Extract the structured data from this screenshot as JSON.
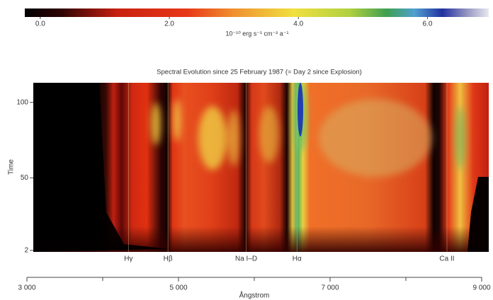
{
  "chart_data": {
    "type": "heatmap",
    "title": "Spectral Evolution since 25 February 1987 (= Day 2 since Explosion)",
    "x_label": "Ångstrom",
    "y_label": "Time",
    "xlim": [
      3000,
      9000
    ],
    "xticks": [
      {
        "value": 3000,
        "label": "3 000"
      },
      {
        "value": 5000,
        "label": "5 000"
      },
      {
        "value": 7000,
        "label": "7 000"
      },
      {
        "value": 9000,
        "label": "9 000"
      }
    ],
    "x_minor_ticks": [
      4000,
      6000,
      8000
    ],
    "ylim": [
      1,
      113
    ],
    "yticks": [
      2,
      50,
      100
    ],
    "lines": [
      {
        "label": "Hγ",
        "x": 4340
      },
      {
        "label": "Hβ",
        "x": 4861
      },
      {
        "label": "Na I–D",
        "x": 5893
      },
      {
        "label": "Hα",
        "x": 6563
      },
      {
        "label": "Ca II",
        "x": 8542
      }
    ],
    "colorbar": {
      "label": "10⁻¹⁰ erg s⁻¹ cm⁻² a⁻¹",
      "clim": [
        -0.24,
        6.95
      ],
      "ticks": [
        {
          "value": 0,
          "label": "0.0"
        },
        {
          "value": 2,
          "label": "2.0"
        },
        {
          "value": 4,
          "label": "4.0"
        },
        {
          "value": 6,
          "label": "6.0"
        }
      ]
    }
  }
}
